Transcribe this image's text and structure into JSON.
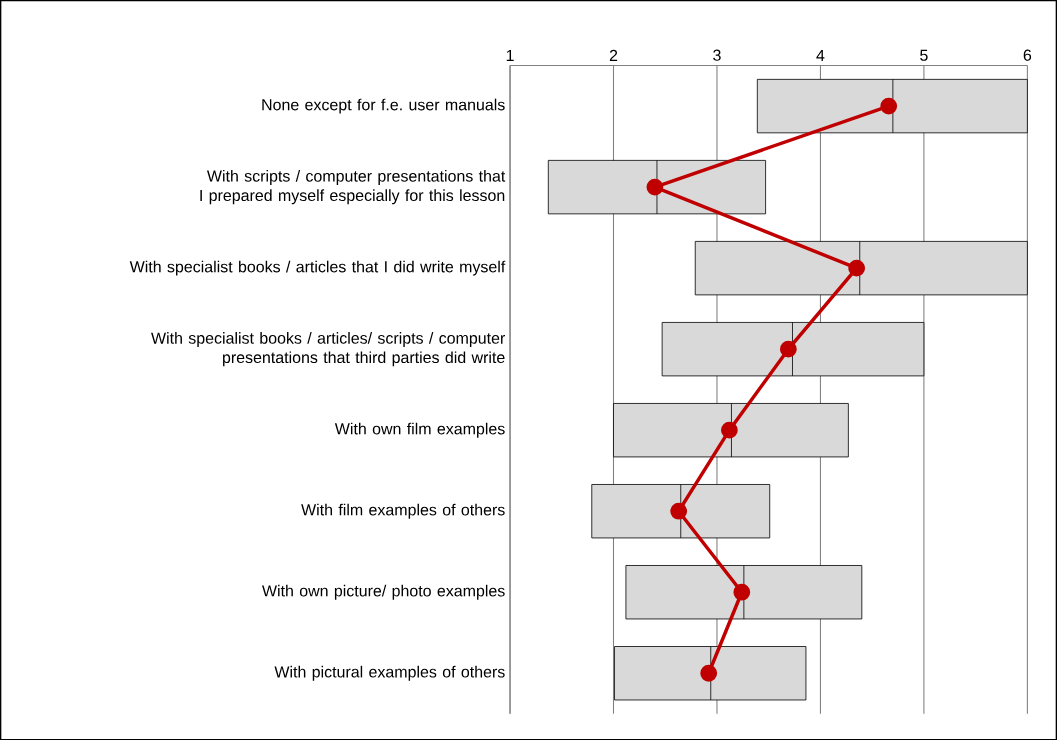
{
  "chart_data": {
    "type": "box",
    "orientation": "horizontal",
    "categories": [
      "None except for f.e. user manuals",
      "With scripts / computer presentations that I prepared myself especially for this lesson",
      "With specialist books / articles that I did write myself",
      "With specialist books / articles/ scripts / computer presentations that third parties did write",
      "With own film examples",
      "With film examples of others",
      "With own picture/ photo examples",
      "With pictural examples of others"
    ],
    "xlim": [
      1,
      6
    ],
    "xticks": [
      1,
      2,
      3,
      4,
      5,
      6
    ],
    "grid": "x",
    "marker": "circle",
    "line_style": "solid",
    "series": [
      {
        "color": "#d9d9d9",
        "boxes": [
          {
            "low": 3.39,
            "q1": 3.39,
            "median": 4.7,
            "q3": 6.0,
            "high": 6.0
          },
          {
            "low": 1.37,
            "q1": 1.37,
            "median": 2.42,
            "q3": 3.47,
            "high": 3.47
          },
          {
            "low": 2.79,
            "q1": 2.79,
            "median": 4.38,
            "q3": 6.0,
            "high": 6.0
          },
          {
            "low": 2.47,
            "q1": 2.47,
            "median": 3.73,
            "q3": 5.0,
            "high": 5.0
          },
          {
            "low": 2.0,
            "q1": 2.0,
            "median": 3.14,
            "q3": 4.27,
            "high": 4.27
          },
          {
            "low": 1.79,
            "q1": 1.79,
            "median": 2.65,
            "q3": 3.51,
            "high": 3.51
          },
          {
            "low": 2.12,
            "q1": 2.12,
            "median": 3.26,
            "q3": 4.4,
            "high": 4.4
          },
          {
            "low": 2.01,
            "q1": 2.01,
            "median": 2.94,
            "q3": 3.86,
            "high": 3.86
          }
        ]
      },
      {
        "type": "line",
        "color": "#c00000",
        "values": [
          4.66,
          2.4,
          4.35,
          3.69,
          3.12,
          2.63,
          3.24,
          2.92
        ]
      }
    ]
  }
}
